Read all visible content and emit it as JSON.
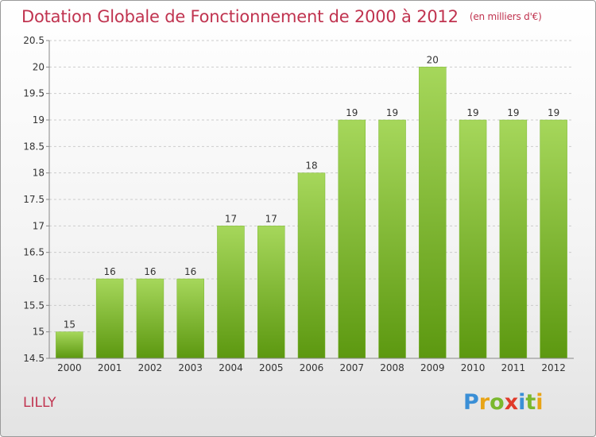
{
  "header": {
    "title": "Dotation Globale de Fonctionnement de 2000 à 2012",
    "subtitle": "(en milliers d'€)"
  },
  "location": "LILLY",
  "logo": {
    "letters": [
      "P",
      "r",
      "o",
      "x",
      "i",
      "t",
      "i"
    ],
    "colors": [
      "#3a8fd6",
      "#e8a416",
      "#7ab82e",
      "#e03a2a",
      "#3a8fd6",
      "#7ab82e",
      "#e8a416"
    ]
  },
  "colors": {
    "bar_light": "#a6d75b",
    "bar_dark": "#5c9810",
    "title": "#c0334f",
    "grid": "#cccccc",
    "axis": "#888888"
  },
  "chart_data": {
    "type": "bar",
    "title": "Dotation Globale de Fonctionnement de 2000 à 2012",
    "subtitle": "(en milliers d'€)",
    "categories": [
      "2000",
      "2001",
      "2002",
      "2003",
      "2004",
      "2005",
      "2006",
      "2007",
      "2008",
      "2009",
      "2010",
      "2011",
      "2012"
    ],
    "values": [
      15,
      16,
      16,
      16,
      17,
      17,
      18,
      19,
      19,
      20,
      19,
      19,
      19
    ],
    "ylim": [
      14.5,
      20.5
    ],
    "yticks": [
      "14.5",
      "15",
      "15.5",
      "16",
      "16.5",
      "17",
      "17.5",
      "18",
      "18.5",
      "19",
      "19.5",
      "20",
      "20.5"
    ],
    "grid": true,
    "legend": "none"
  }
}
